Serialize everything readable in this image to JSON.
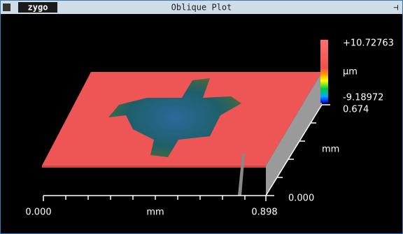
{
  "window": {
    "logo": "zygo",
    "title": "Oblique Plot"
  },
  "colorbar": {
    "max": "+10.72763",
    "unit": "µm",
    "min": "-9.18972"
  },
  "y_axis": {
    "max": "0.674",
    "unit": "mm",
    "min": "0.000"
  },
  "x_axis": {
    "min": "0.000",
    "unit": "mm",
    "max": "0.898"
  }
}
